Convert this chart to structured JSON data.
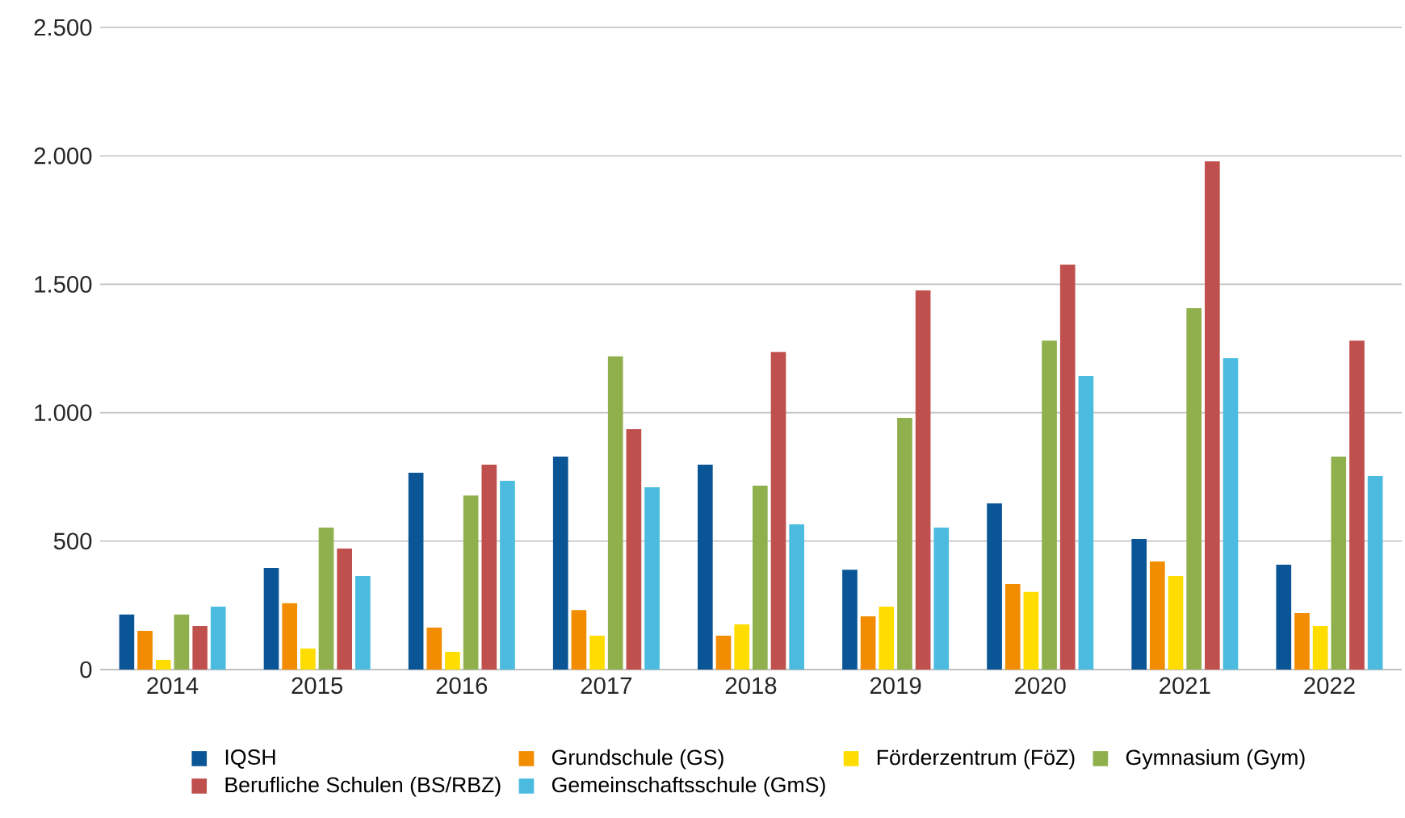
{
  "chart_data": {
    "type": "bar",
    "categories": [
      "2014",
      "2015",
      "2016",
      "2017",
      "2018",
      "2019",
      "2020",
      "2021",
      "2022"
    ],
    "series": [
      {
        "name": "IQSH",
        "color": "#0a5596",
        "values": [
          214,
          396,
          766,
          829,
          798,
          389,
          647,
          509,
          408
        ]
      },
      {
        "name": "Grundschule (GS)",
        "color": "#f28c00",
        "values": [
          151,
          258,
          163,
          232,
          132,
          207,
          333,
          421,
          220
        ]
      },
      {
        "name": "Förderzentrum (FöZ)",
        "color": "#ffdd00",
        "values": [
          38,
          82,
          69,
          132,
          176,
          245,
          302,
          364,
          170
        ]
      },
      {
        "name": "Gymnasium (Gym)",
        "color": "#8fb04c",
        "values": [
          214,
          553,
          678,
          1219,
          716,
          980,
          1281,
          1407,
          829
        ]
      },
      {
        "name": "Berufliche Schulen (BS/RBZ)",
        "color": "#c0504d",
        "values": [
          170,
          471,
          798,
          936,
          1237,
          1476,
          1577,
          1979,
          1281
        ]
      },
      {
        "name": "Gemeinschaftsschule (GmS)",
        "color": "#4bbbe0",
        "values": [
          245,
          364,
          735,
          710,
          565,
          553,
          1143,
          1212,
          754
        ]
      }
    ],
    "ylim": [
      0,
      2500
    ],
    "yticks": [
      0,
      500,
      {
        "value": 1000,
        "label": "1.000"
      },
      {
        "value": 1500,
        "label": "1.500"
      },
      {
        "value": 2000,
        "label": "2.000"
      },
      {
        "value": 2500,
        "label": "2.500"
      }
    ],
    "grid": "y",
    "legend": "bottom"
  }
}
